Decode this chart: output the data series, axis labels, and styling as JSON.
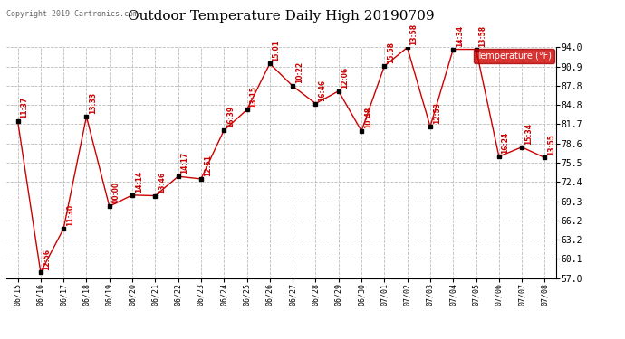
{
  "title": "Outdoor Temperature Daily High 20190709",
  "copyright": "Copyright 2019 Cartronics.com",
  "legend_label": "Temperature (°F)",
  "xlim_min": -0.5,
  "xlim_max": 23.5,
  "ylim_min": 57.0,
  "ylim_max": 94.0,
  "yticks": [
    57.0,
    60.1,
    63.2,
    66.2,
    69.3,
    72.4,
    75.5,
    78.6,
    81.7,
    84.8,
    87.8,
    90.9,
    94.0
  ],
  "dates": [
    "06/15",
    "06/16",
    "06/17",
    "06/18",
    "06/19",
    "06/20",
    "06/21",
    "06/22",
    "06/23",
    "06/24",
    "06/25",
    "06/26",
    "06/27",
    "06/28",
    "06/29",
    "06/30",
    "07/01",
    "07/02",
    "07/03",
    "07/04",
    "07/05",
    "07/06",
    "07/07",
    "07/08"
  ],
  "values": [
    82.2,
    57.9,
    64.9,
    82.9,
    68.5,
    70.3,
    70.2,
    73.3,
    72.9,
    80.7,
    84.0,
    91.4,
    87.8,
    85.0,
    87.0,
    80.6,
    91.0,
    94.0,
    81.3,
    93.7,
    93.7,
    76.5,
    78.0,
    76.3
  ],
  "time_labels": [
    "11:37",
    "12:56",
    "11:30",
    "13:33",
    "00:00",
    "14:14",
    "13:46",
    "14:17",
    "12:51",
    "16:39",
    "13:15",
    "15:01",
    "10:22",
    "16:46",
    "12:06",
    "10:48",
    "15:58",
    "13:58",
    "12:53",
    "14:34",
    "13:58",
    "16:24",
    "15:34",
    "13:55"
  ],
  "line_color": "#cc0000",
  "marker_color": "#000000",
  "bg_color": "#ffffff",
  "grid_color": "#bbbbbb",
  "title_fontsize": 11,
  "legend_bg": "#cc0000",
  "legend_fg": "#ffffff"
}
